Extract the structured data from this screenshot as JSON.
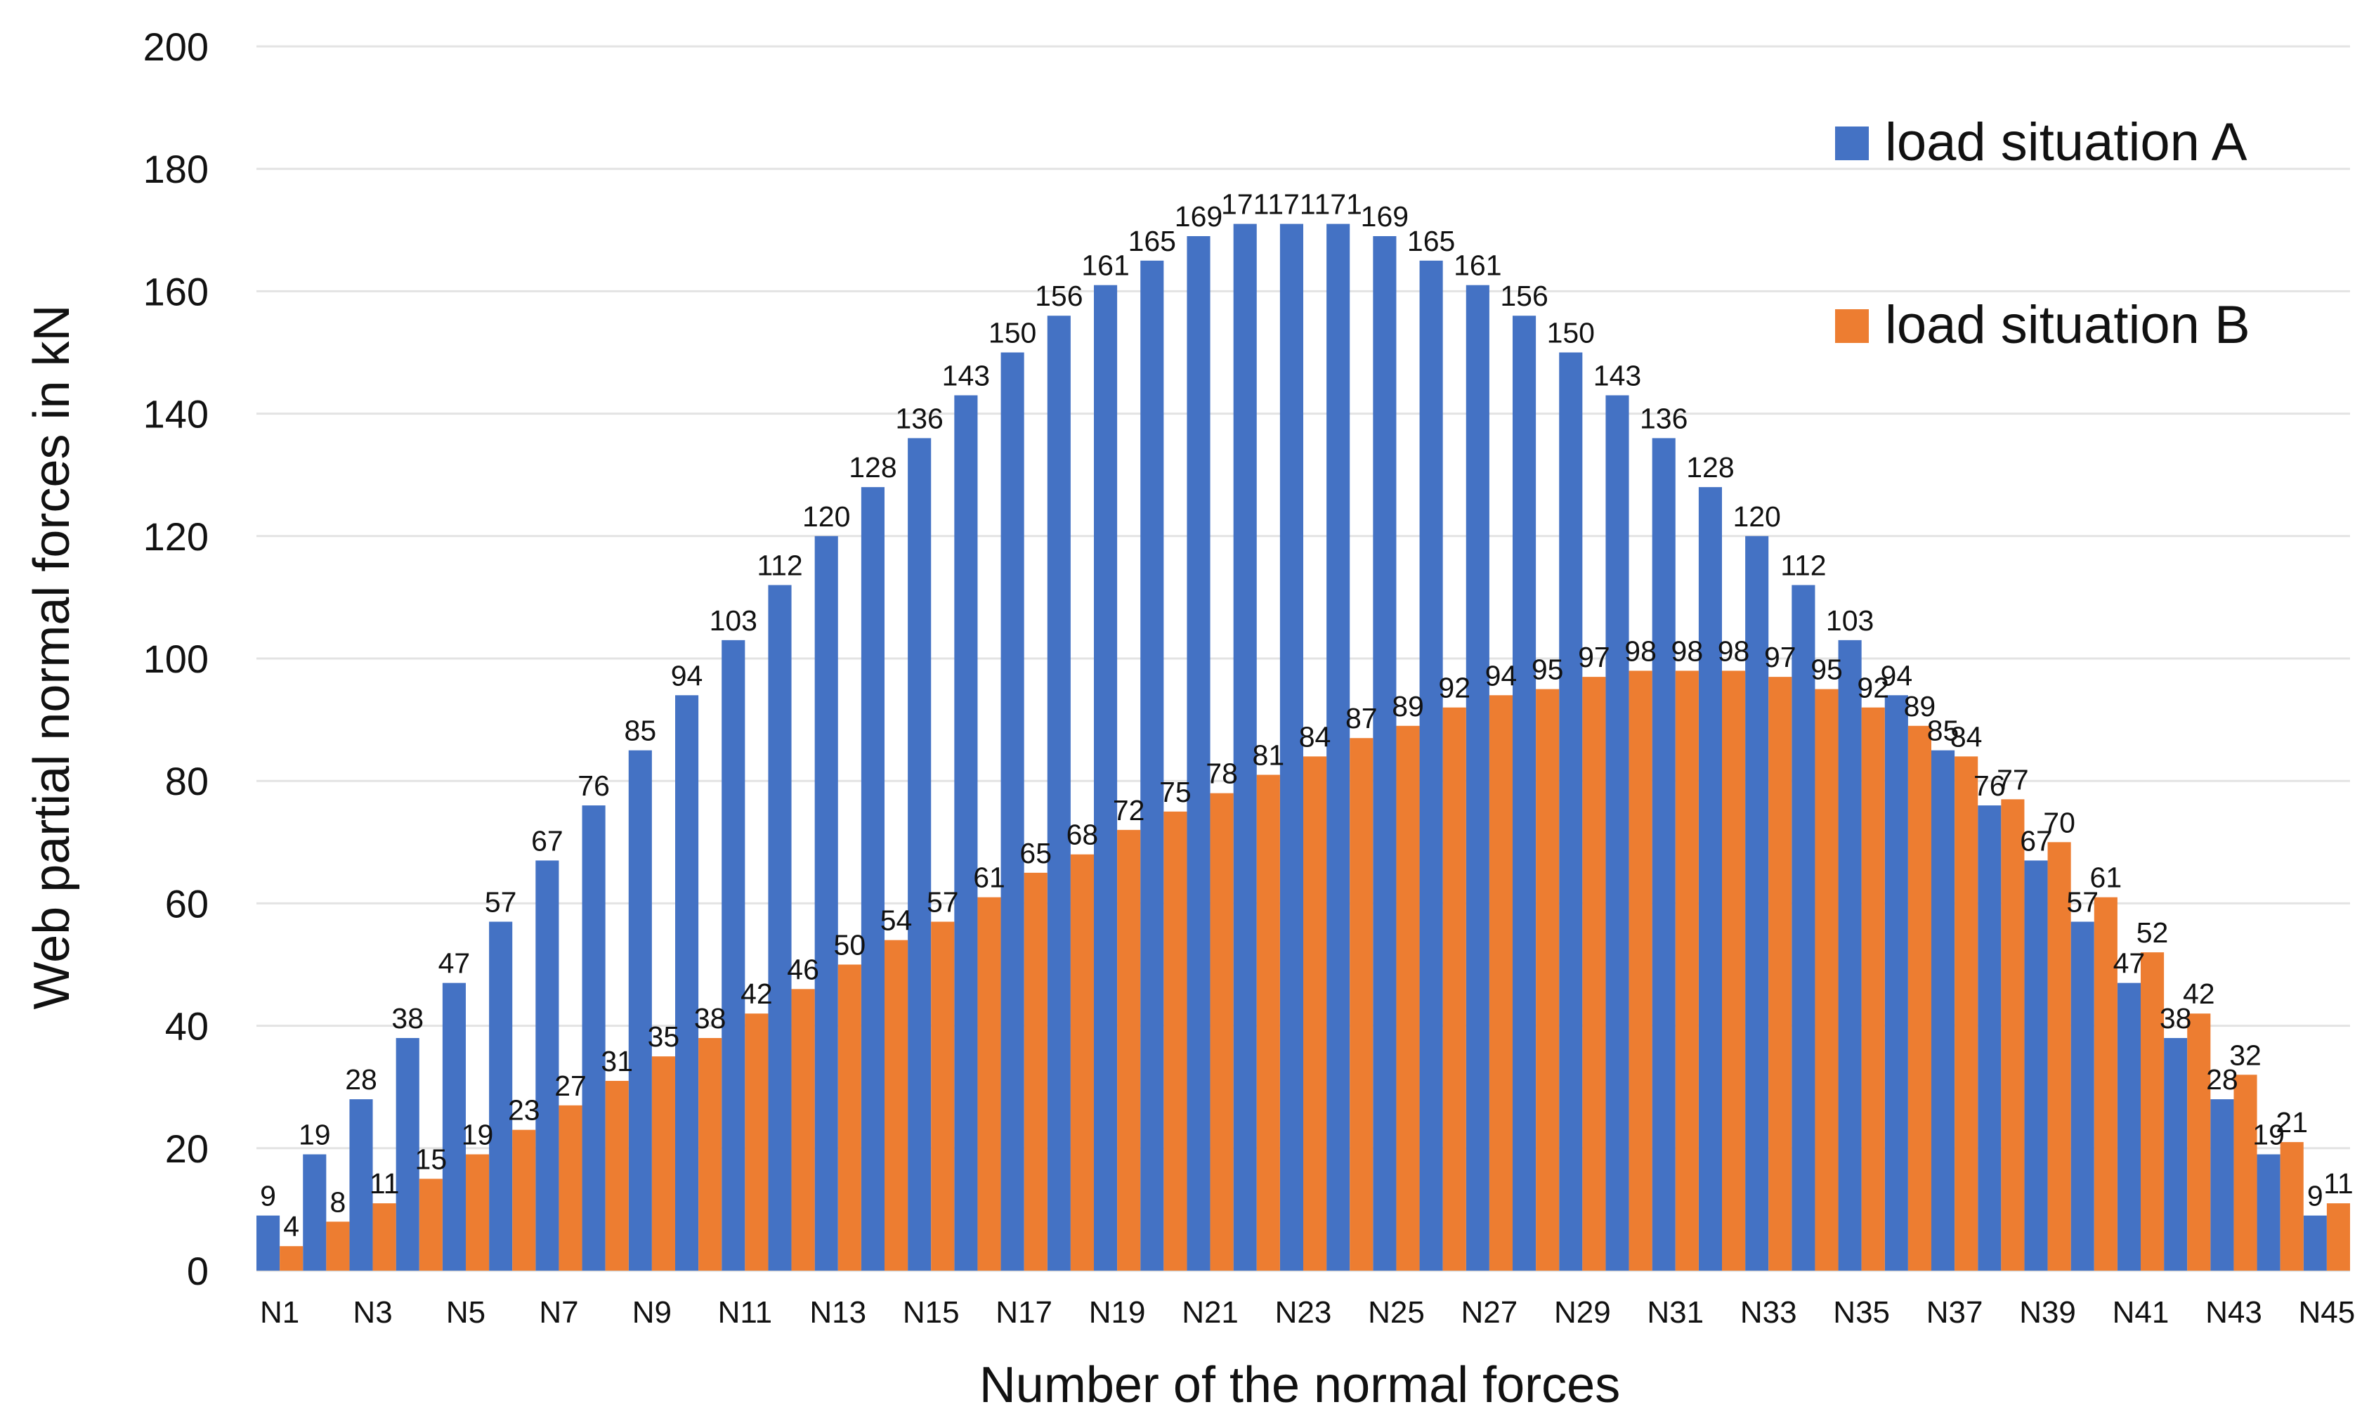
{
  "chart_data": {
    "type": "bar",
    "title": "",
    "xlabel": "Number of the normal forces",
    "ylabel": "Web partial normal forces in kN",
    "ylim": [
      0,
      200
    ],
    "yticks": [
      0,
      20,
      40,
      60,
      80,
      100,
      120,
      140,
      160,
      180,
      200
    ],
    "grid": true,
    "legend_position": "top-right",
    "categories": [
      "N1",
      "N2",
      "N3",
      "N4",
      "N5",
      "N6",
      "N7",
      "N8",
      "N9",
      "N10",
      "N11",
      "N12",
      "N13",
      "N14",
      "N15",
      "N16",
      "N17",
      "N18",
      "N19",
      "N20",
      "N21",
      "N22",
      "N23",
      "N24",
      "N25",
      "N26",
      "N27",
      "N28",
      "N29",
      "N30",
      "N31",
      "N32",
      "N33",
      "N34",
      "N35",
      "N36",
      "N37",
      "N38",
      "N39",
      "N40",
      "N41",
      "N42",
      "N43",
      "N44",
      "N45"
    ],
    "xtick_labels": [
      "N1",
      "N3",
      "N5",
      "N7",
      "N9",
      "N11",
      "N13",
      "N15",
      "N17",
      "N19",
      "N21",
      "N23",
      "N25",
      "N27",
      "N29",
      "N31",
      "N33",
      "N35",
      "N37",
      "N39",
      "N41",
      "N43",
      "N45"
    ],
    "series": [
      {
        "name": "load situation A",
        "color": "#4472c4",
        "values": [
          9,
          19,
          28,
          38,
          47,
          57,
          67,
          76,
          85,
          94,
          103,
          112,
          120,
          128,
          136,
          143,
          150,
          156,
          161,
          165,
          169,
          171,
          171,
          171,
          169,
          165,
          161,
          156,
          150,
          143,
          136,
          128,
          120,
          112,
          103,
          94,
          85,
          76,
          67,
          57,
          47,
          38,
          28,
          19,
          9
        ]
      },
      {
        "name": "load situation B",
        "color": "#ed7d31",
        "values": [
          4,
          8,
          11,
          15,
          19,
          23,
          27,
          31,
          35,
          38,
          42,
          46,
          50,
          54,
          57,
          61,
          65,
          68,
          72,
          75,
          78,
          81,
          84,
          87,
          89,
          92,
          94,
          95,
          97,
          98,
          98,
          98,
          97,
          95,
          92,
          89,
          84,
          77,
          70,
          61,
          52,
          42,
          32,
          21,
          11
        ]
      }
    ]
  }
}
